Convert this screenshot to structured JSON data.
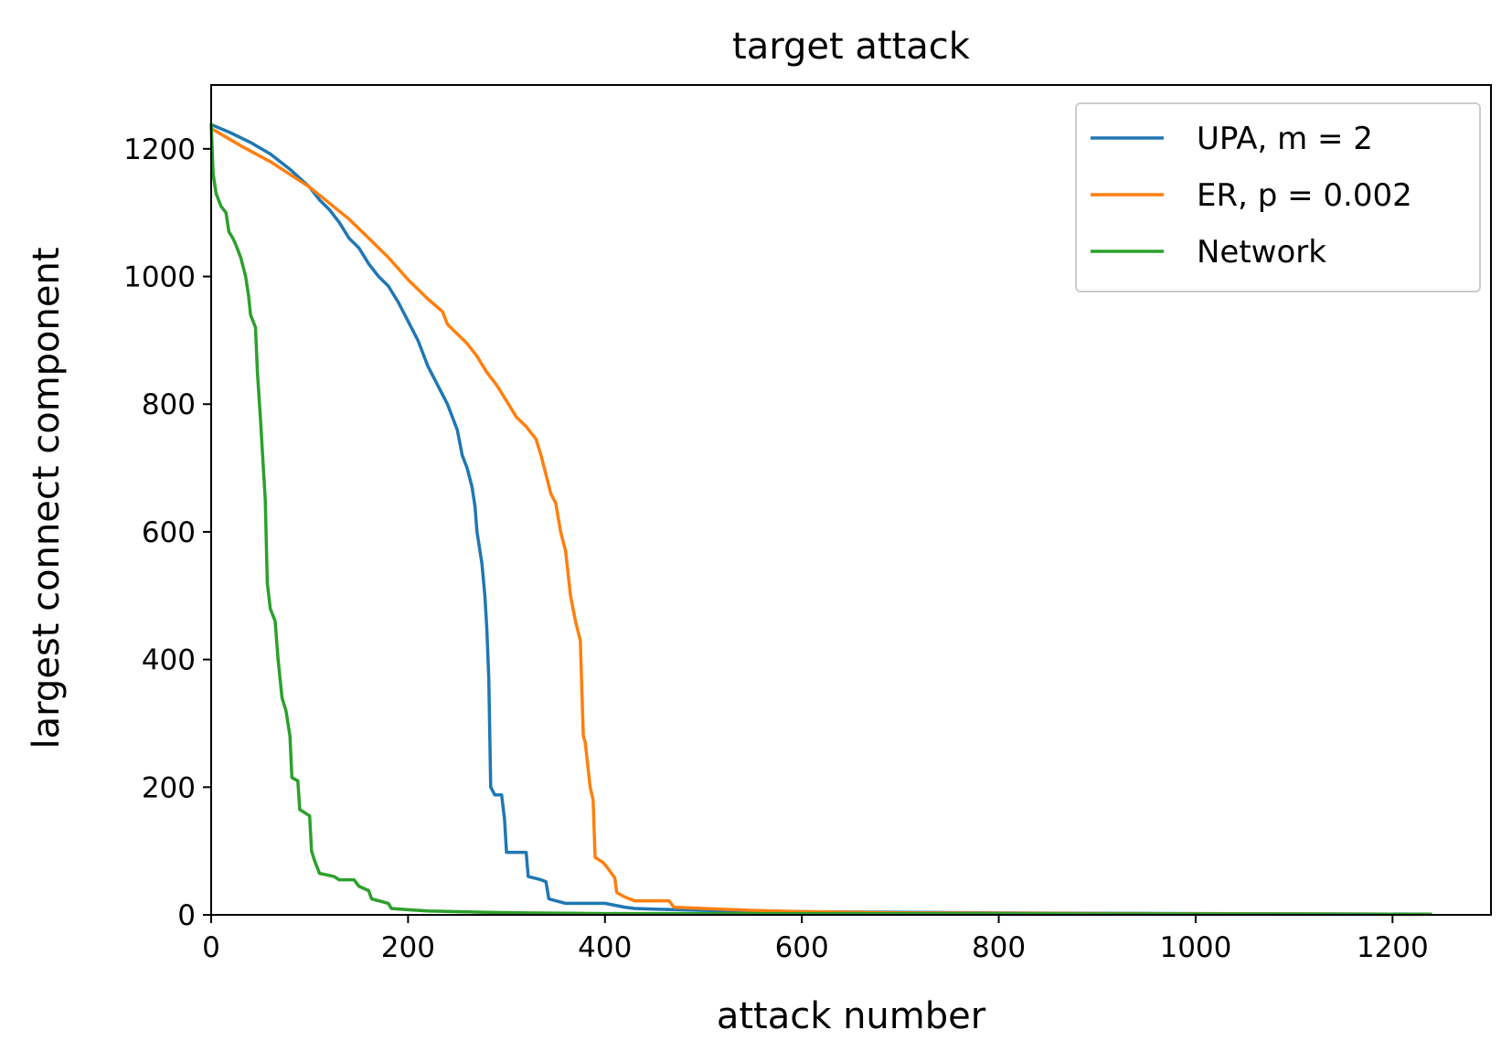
{
  "chart_data": {
    "type": "line",
    "title": "target attack",
    "xlabel": "attack number",
    "ylabel": "largest connect component",
    "xlim": [
      0,
      1300
    ],
    "ylim": [
      0,
      1300
    ],
    "xticks": [
      0,
      200,
      400,
      600,
      800,
      1000,
      1200
    ],
    "yticks": [
      0,
      200,
      400,
      600,
      800,
      1000,
      1200
    ],
    "grid": false,
    "legend_position": "top-right",
    "series": [
      {
        "name": "UPA, m = 2",
        "color": "#1f77b4",
        "points": [
          [
            0,
            1238
          ],
          [
            20,
            1225
          ],
          [
            40,
            1210
          ],
          [
            60,
            1192
          ],
          [
            80,
            1168
          ],
          [
            100,
            1140
          ],
          [
            110,
            1120
          ],
          [
            120,
            1105
          ],
          [
            130,
            1085
          ],
          [
            140,
            1060
          ],
          [
            150,
            1045
          ],
          [
            160,
            1020
          ],
          [
            170,
            1000
          ],
          [
            180,
            985
          ],
          [
            190,
            960
          ],
          [
            200,
            930
          ],
          [
            210,
            900
          ],
          [
            220,
            860
          ],
          [
            230,
            830
          ],
          [
            240,
            800
          ],
          [
            250,
            760
          ],
          [
            255,
            720
          ],
          [
            260,
            700
          ],
          [
            265,
            670
          ],
          [
            268,
            640
          ],
          [
            270,
            600
          ],
          [
            275,
            550
          ],
          [
            278,
            500
          ],
          [
            280,
            450
          ],
          [
            282,
            370
          ],
          [
            284,
            200
          ],
          [
            288,
            188
          ],
          [
            295,
            188
          ],
          [
            298,
            150
          ],
          [
            300,
            98
          ],
          [
            320,
            98
          ],
          [
            322,
            60
          ],
          [
            335,
            55
          ],
          [
            340,
            52
          ],
          [
            343,
            25
          ],
          [
            350,
            22
          ],
          [
            360,
            18
          ],
          [
            400,
            18
          ],
          [
            420,
            12
          ],
          [
            430,
            10
          ],
          [
            450,
            9
          ],
          [
            500,
            7
          ],
          [
            600,
            5
          ],
          [
            800,
            3
          ],
          [
            1000,
            2
          ],
          [
            1240,
            1
          ]
        ]
      },
      {
        "name": "ER, p = 0.002",
        "color": "#ff7f0e",
        "points": [
          [
            0,
            1232
          ],
          [
            30,
            1205
          ],
          [
            60,
            1180
          ],
          [
            80,
            1160
          ],
          [
            100,
            1140
          ],
          [
            120,
            1115
          ],
          [
            140,
            1090
          ],
          [
            160,
            1060
          ],
          [
            180,
            1030
          ],
          [
            200,
            995
          ],
          [
            220,
            965
          ],
          [
            235,
            945
          ],
          [
            240,
            925
          ],
          [
            260,
            895
          ],
          [
            270,
            875
          ],
          [
            280,
            850
          ],
          [
            290,
            830
          ],
          [
            300,
            805
          ],
          [
            310,
            780
          ],
          [
            320,
            765
          ],
          [
            330,
            745
          ],
          [
            335,
            720
          ],
          [
            340,
            690
          ],
          [
            345,
            660
          ],
          [
            350,
            645
          ],
          [
            355,
            600
          ],
          [
            360,
            570
          ],
          [
            365,
            500
          ],
          [
            370,
            460
          ],
          [
            375,
            430
          ],
          [
            378,
            280
          ],
          [
            380,
            270
          ],
          [
            385,
            200
          ],
          [
            388,
            180
          ],
          [
            390,
            90
          ],
          [
            398,
            82
          ],
          [
            402,
            75
          ],
          [
            410,
            58
          ],
          [
            412,
            35
          ],
          [
            420,
            28
          ],
          [
            430,
            22
          ],
          [
            465,
            22
          ],
          [
            470,
            12
          ],
          [
            500,
            10
          ],
          [
            550,
            7
          ],
          [
            600,
            5
          ],
          [
            700,
            3
          ],
          [
            900,
            2
          ],
          [
            1240,
            1
          ]
        ]
      },
      {
        "name": "Network",
        "color": "#2ca02c",
        "points": [
          [
            0,
            1240
          ],
          [
            2,
            1160
          ],
          [
            5,
            1130
          ],
          [
            10,
            1110
          ],
          [
            15,
            1100
          ],
          [
            18,
            1070
          ],
          [
            22,
            1060
          ],
          [
            25,
            1050
          ],
          [
            30,
            1030
          ],
          [
            35,
            1000
          ],
          [
            38,
            970
          ],
          [
            40,
            940
          ],
          [
            45,
            920
          ],
          [
            47,
            850
          ],
          [
            50,
            780
          ],
          [
            53,
            700
          ],
          [
            55,
            650
          ],
          [
            57,
            520
          ],
          [
            60,
            480
          ],
          [
            65,
            460
          ],
          [
            68,
            400
          ],
          [
            72,
            340
          ],
          [
            76,
            320
          ],
          [
            80,
            280
          ],
          [
            82,
            215
          ],
          [
            88,
            210
          ],
          [
            90,
            165
          ],
          [
            95,
            160
          ],
          [
            100,
            155
          ],
          [
            102,
            100
          ],
          [
            105,
            85
          ],
          [
            110,
            65
          ],
          [
            125,
            60
          ],
          [
            130,
            55
          ],
          [
            145,
            55
          ],
          [
            150,
            45
          ],
          [
            160,
            38
          ],
          [
            163,
            25
          ],
          [
            180,
            18
          ],
          [
            183,
            10
          ],
          [
            200,
            8
          ],
          [
            220,
            6
          ],
          [
            250,
            5
          ],
          [
            280,
            4
          ],
          [
            320,
            3
          ],
          [
            400,
            2
          ],
          [
            600,
            2
          ],
          [
            1240,
            1
          ]
        ]
      }
    ]
  }
}
